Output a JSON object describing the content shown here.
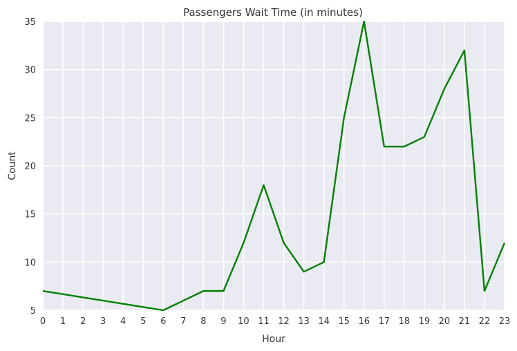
{
  "chart_data": {
    "type": "line",
    "title": "Passengers Wait Time (in minutes)",
    "xlabel": "Hour",
    "ylabel": "Count",
    "x": [
      0,
      1,
      2,
      3,
      4,
      5,
      6,
      7,
      8,
      9,
      10,
      11,
      12,
      13,
      14,
      15,
      16,
      17,
      18,
      19,
      20,
      21,
      22,
      23
    ],
    "series": [
      {
        "values": [
          7,
          6.67,
          6.33,
          6,
          5.67,
          5.33,
          5,
          6,
          7,
          7,
          12,
          18,
          12,
          9,
          10,
          25,
          35,
          22,
          22,
          23,
          28,
          32,
          7,
          12
        ],
        "color": "#008000"
      }
    ],
    "xlim": [
      0,
      23
    ],
    "ylim": [
      5,
      35
    ],
    "yticks": [
      5,
      10,
      15,
      20,
      25,
      30,
      35
    ],
    "xticks": [
      0,
      1,
      2,
      3,
      4,
      5,
      6,
      7,
      8,
      9,
      10,
      11,
      12,
      13,
      14,
      15,
      16,
      17,
      18,
      19,
      20,
      21,
      22,
      23
    ],
    "grid": true,
    "legend": "none",
    "colors": {
      "background": "#EAEAF2",
      "grid": "#FFFFFF",
      "text": "#333333"
    }
  }
}
